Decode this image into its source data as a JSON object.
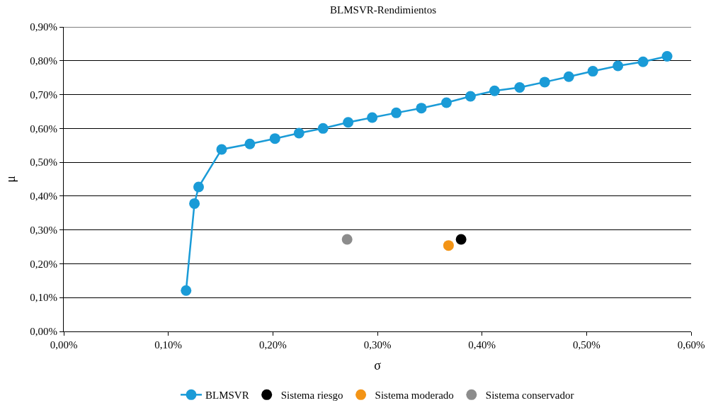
{
  "chart_data": {
    "type": "scatter",
    "title": "BLMSVR-Rendimientos",
    "xlabel": "σ",
    "ylabel": "μ",
    "series": [
      {
        "name": "BLMSVR",
        "type": "line",
        "color": "#1a9bd7",
        "marker": "circle",
        "line_style": "solid",
        "x": [
          0.117,
          0.125,
          0.129,
          0.151,
          0.178,
          0.202,
          0.225,
          0.248,
          0.272,
          0.295,
          0.318,
          0.342,
          0.366,
          0.389,
          0.412,
          0.436,
          0.46,
          0.483,
          0.506,
          0.53,
          0.554,
          0.577
        ],
        "values": [
          0.121,
          0.378,
          0.427,
          0.538,
          0.554,
          0.57,
          0.586,
          0.6,
          0.618,
          0.632,
          0.646,
          0.66,
          0.676,
          0.695,
          0.711,
          0.721,
          0.737,
          0.753,
          0.769,
          0.785,
          0.797,
          0.813
        ]
      },
      {
        "name": "Sistema riesgo",
        "color": "#000000",
        "marker": "circle",
        "x": [
          0.38
        ],
        "values": [
          0.272
        ]
      },
      {
        "name": "Sistema moderado",
        "color": "#f39416",
        "marker": "circle",
        "x": [
          0.368
        ],
        "values": [
          0.254
        ]
      },
      {
        "name": "Sistema conservador",
        "color": "#8c8c8c",
        "marker": "circle",
        "x": [
          0.271
        ],
        "values": [
          0.272
        ]
      }
    ],
    "xlim": [
      0,
      0.6
    ],
    "xticks": [
      {
        "value": 0,
        "label": "0,00%"
      },
      {
        "value": 0.1,
        "label": "0,10%"
      },
      {
        "value": 0.2,
        "label": "0,20%"
      },
      {
        "value": 0.3,
        "label": "0,30%"
      },
      {
        "value": 0.4,
        "label": "0,40%"
      },
      {
        "value": 0.5,
        "label": "0,50%"
      },
      {
        "value": 0.6,
        "label": "0,60%"
      }
    ],
    "ylim": [
      0,
      0.9
    ],
    "yticks": [
      {
        "value": 0,
        "label": "0,00%"
      },
      {
        "value": 0.1,
        "label": "0,10%"
      },
      {
        "value": 0.2,
        "label": "0,20%"
      },
      {
        "value": 0.3,
        "label": "0,30%"
      },
      {
        "value": 0.4,
        "label": "0,40%"
      },
      {
        "value": 0.5,
        "label": "0,50%"
      },
      {
        "value": 0.6,
        "label": "0,60%"
      },
      {
        "value": 0.7,
        "label": "0,70%"
      },
      {
        "value": 0.8,
        "label": "0,80%"
      },
      {
        "value": 0.9,
        "label": "0,90%"
      }
    ],
    "grid": "y",
    "legend": "bottom"
  }
}
